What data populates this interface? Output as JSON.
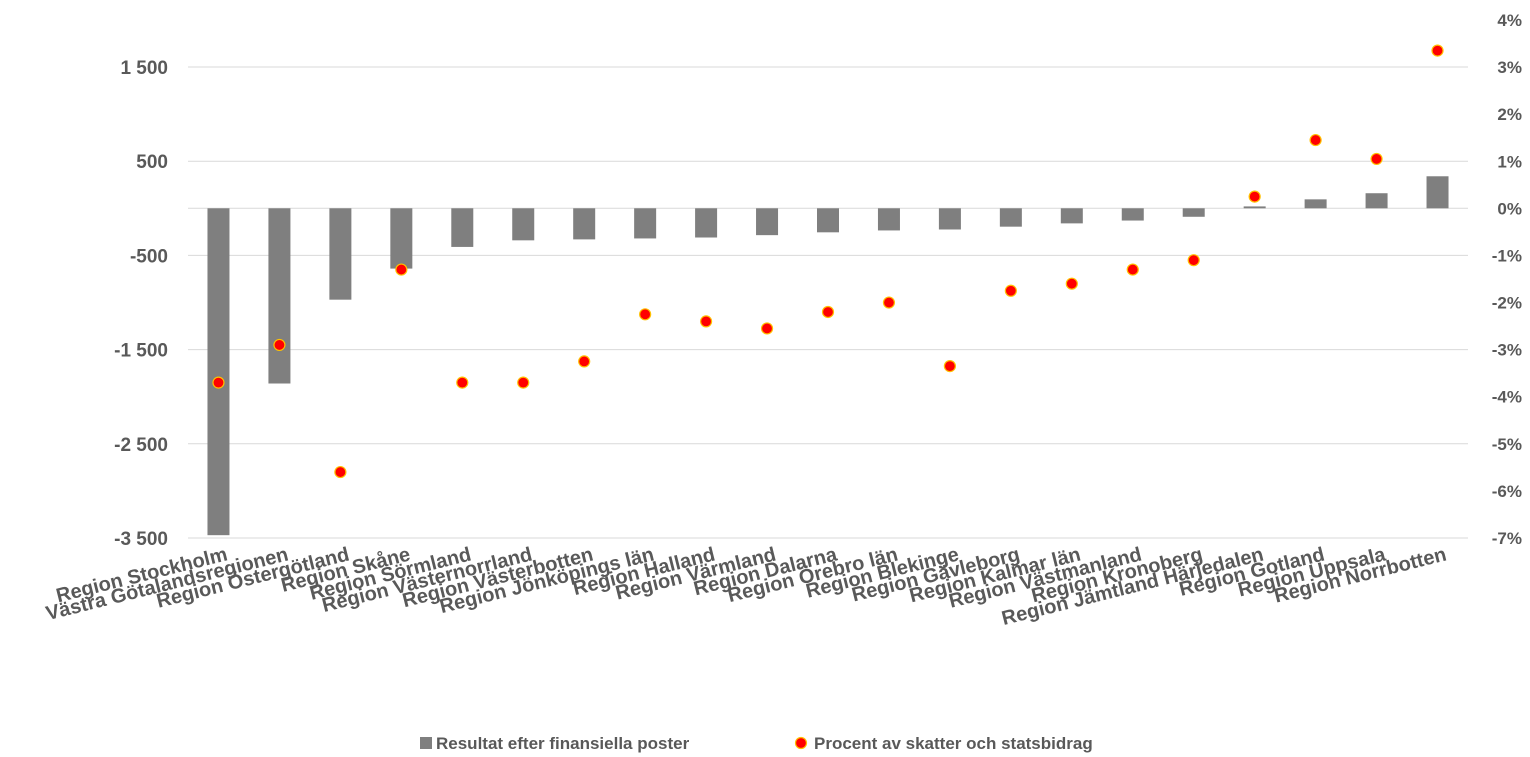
{
  "chart_data": {
    "type": "bar",
    "title": "",
    "xlabel": "",
    "ylabel": "",
    "categories": [
      "Region Stockholm",
      "Västra Götalandsregionen",
      "Region Östergötland",
      "Region Skåne",
      "Region Sörmland",
      "Region Västernorrland",
      "Region Västerbotten",
      "Region Jönköpings län",
      "Region Halland",
      "Region Värmland",
      "Region Dalarna",
      "Region Örebro län",
      "Region Blekinge",
      "Region Gävleborg",
      "Region Kalmar län",
      "Region Västmanland",
      "Region Kronoberg",
      "Region Jämtland Härjedalen",
      "Region Gotland",
      "Region Uppsala",
      "Region Norrbotten"
    ],
    "series": [
      {
        "name": "Resultat efter finansiella poster",
        "type": "bar",
        "axis": "left",
        "color": "#7f7f7f",
        "values": [
          -3470,
          -1860,
          -970,
          -640,
          -410,
          -340,
          -330,
          -320,
          -310,
          -285,
          -255,
          -235,
          -225,
          -195,
          -160,
          -130,
          -90,
          20,
          95,
          160,
          340
        ]
      },
      {
        "name": "Procent av skatter och statsbidrag",
        "type": "scatter",
        "axis": "right",
        "color": "#ff0000",
        "border": "#ffc000",
        "values": [
          -3.7,
          -2.9,
          -5.6,
          -1.3,
          -3.7,
          -3.7,
          -3.25,
          -2.25,
          -2.4,
          -2.55,
          -2.2,
          -2.0,
          -3.35,
          -1.75,
          -1.6,
          -1.3,
          -1.1,
          0.25,
          1.45,
          1.05,
          3.35
        ]
      }
    ],
    "left_axis": {
      "ylim": [
        -3500,
        1500
      ],
      "ticks": [
        1500,
        500,
        -500,
        -1500,
        -2500,
        -3500
      ],
      "tick_labels": [
        "1 500",
        "500",
        "-500",
        "-1 500",
        "-2 500",
        "-3 500"
      ]
    },
    "right_axis": {
      "ylim": [
        -7,
        4
      ],
      "ticks": [
        4,
        3,
        2,
        1,
        0,
        -1,
        -2,
        -3,
        -4,
        -5,
        -6,
        -7
      ],
      "tick_labels": [
        "4%",
        "3%",
        "2%",
        "1%",
        "0%",
        "-1%",
        "-2%",
        "-3%",
        "-4%",
        "-5%",
        "-6%",
        "-7%"
      ]
    },
    "gridlines": true,
    "legend_position": "bottom"
  }
}
